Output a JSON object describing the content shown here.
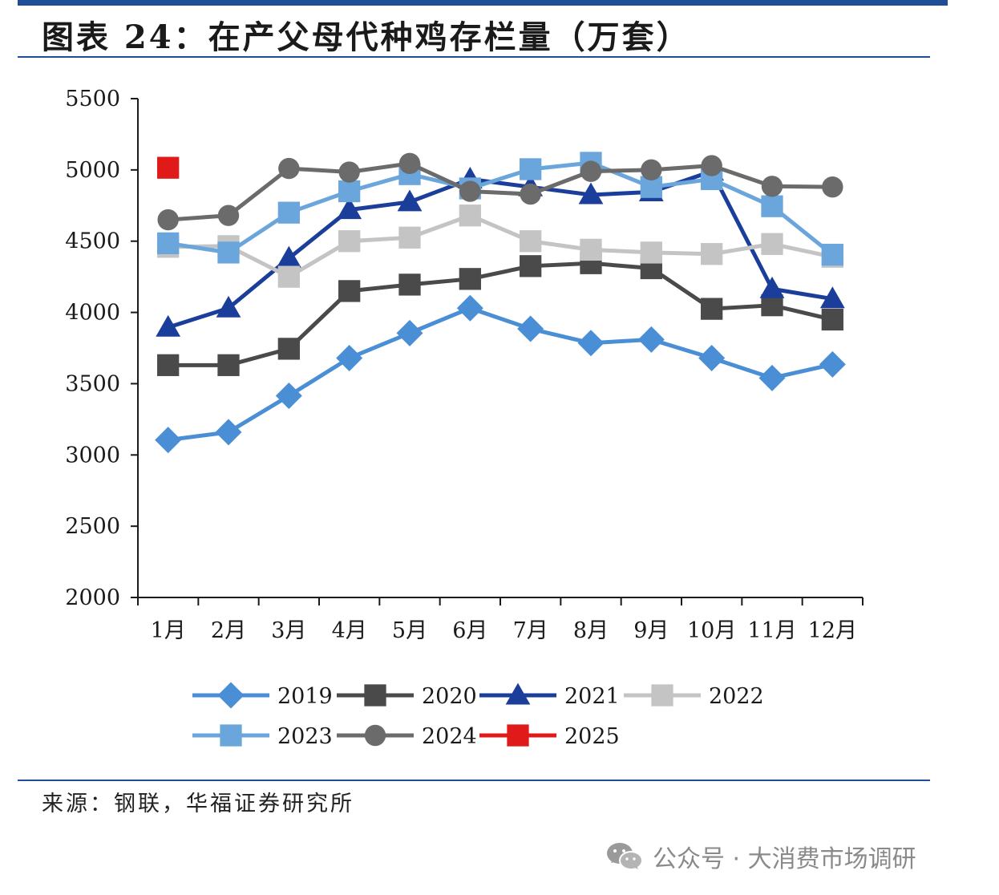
{
  "title": "图表 24：在产父母代种鸡存栏量（万套）",
  "source": "来源：钢联，华福证券研究所",
  "watermark": "公众号 · 大消费市场调研",
  "colors": {
    "top_bar": "#1f4e99",
    "rule": "#1f4e99",
    "axis": "#1a1a1a"
  },
  "icons": {
    "watermark_icon": "wechat-icon"
  },
  "chart_data": {
    "type": "line",
    "title": "在产父母代种鸡存栏量（万套）",
    "xlabel": "",
    "ylabel": "",
    "categories": [
      "1月",
      "2月",
      "3月",
      "4月",
      "5月",
      "6月",
      "7月",
      "8月",
      "9月",
      "10月",
      "11月",
      "12月"
    ],
    "ylim": [
      2000,
      5500
    ],
    "yticks": [
      2000,
      2500,
      3000,
      3500,
      4000,
      4500,
      5000,
      5500
    ],
    "grid": false,
    "legend_position": "bottom",
    "series": [
      {
        "name": "2019",
        "color": "#4a8fd6",
        "marker": "diamond",
        "values": [
          3105,
          3160,
          3415,
          3680,
          3855,
          4030,
          3885,
          3785,
          3810,
          3680,
          3540,
          3635
        ]
      },
      {
        "name": "2020",
        "color": "#4a4a4a",
        "marker": "square",
        "values": [
          3630,
          3630,
          3745,
          4150,
          4195,
          4235,
          4325,
          4345,
          4310,
          4025,
          4050,
          3950
        ]
      },
      {
        "name": "2021",
        "color": "#1a3e9a",
        "marker": "triangle",
        "values": [
          3895,
          4030,
          4380,
          4720,
          4775,
          4935,
          4880,
          4825,
          4845,
          4990,
          4165,
          4095
        ]
      },
      {
        "name": "2022",
        "color": "#c4c4c4",
        "marker": "square",
        "values": [
          4460,
          4465,
          4250,
          4500,
          4525,
          4680,
          4500,
          4440,
          4420,
          4410,
          4480,
          4390
        ]
      },
      {
        "name": "2023",
        "color": "#6aa6dc",
        "marker": "square",
        "values": [
          4485,
          4420,
          4700,
          4850,
          4970,
          4870,
          5005,
          5050,
          4880,
          4935,
          4745,
          4405
        ]
      },
      {
        "name": "2024",
        "color": "#6b6b6b",
        "marker": "circle",
        "values": [
          4650,
          4680,
          5010,
          4985,
          5045,
          4850,
          4830,
          4990,
          5000,
          5030,
          4885,
          4880
        ]
      },
      {
        "name": "2025",
        "color": "#e01919",
        "marker": "square",
        "values": [
          5015,
          null,
          null,
          null,
          null,
          null,
          null,
          null,
          null,
          null,
          null,
          null
        ]
      }
    ]
  }
}
